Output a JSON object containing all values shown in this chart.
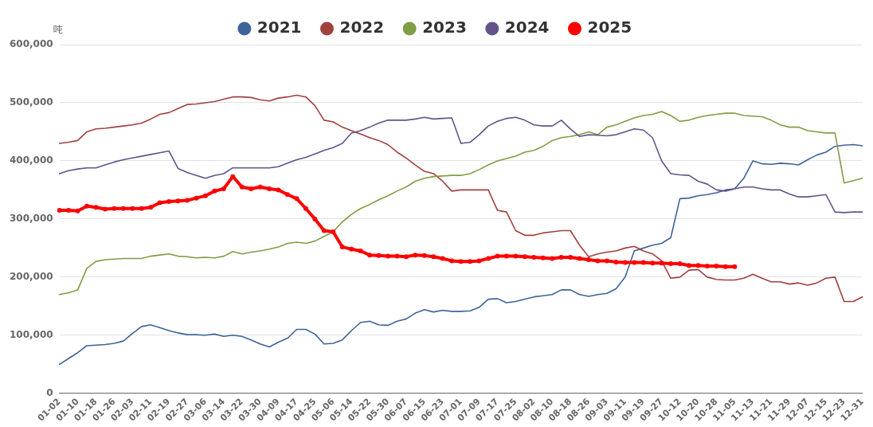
{
  "chart_data": {
    "type": "line",
    "ylabel": "吨",
    "categories": [
      "01-02",
      null,
      "01-10",
      null,
      "01-18",
      null,
      "01-26",
      null,
      "02-03",
      null,
      "02-11",
      null,
      "02-19",
      null,
      "02-27",
      null,
      "03-06",
      null,
      "03-14",
      null,
      "03-22",
      null,
      "03-30",
      null,
      "04-09",
      null,
      "04-17",
      null,
      "04-25",
      null,
      "05-06",
      null,
      "05-14",
      null,
      "05-22",
      null,
      "05-30",
      null,
      "06-07",
      null,
      "06-15",
      null,
      "06-23",
      null,
      "07-01",
      null,
      "07-09",
      null,
      "07-17",
      null,
      "07-25",
      null,
      "08-02",
      null,
      "08-10",
      null,
      "08-18",
      null,
      "08-26",
      null,
      "09-03",
      null,
      "09-11",
      null,
      "09-19",
      null,
      "09-27",
      null,
      "10-12",
      null,
      "10-20",
      null,
      "10-28",
      null,
      "11-05",
      null,
      "11-13",
      null,
      "11-21",
      null,
      "11-29",
      null,
      "12-07",
      null,
      "12-15",
      null,
      "12-23",
      null,
      "12-31"
    ],
    "series": [
      {
        "name": "2021",
        "color": "#3d6499",
        "values": [
          50000,
          60000,
          70000,
          82000,
          83000,
          84000,
          86000,
          90000,
          103000,
          115000,
          118000,
          113000,
          108000,
          104000,
          101000,
          101000,
          100000,
          102000,
          98000,
          100000,
          98000,
          92000,
          85000,
          80000,
          88000,
          95000,
          110000,
          110000,
          102000,
          85000,
          86000,
          92000,
          108000,
          122000,
          124000,
          118000,
          117000,
          124000,
          128000,
          138000,
          144000,
          140000,
          143000,
          141000,
          141000,
          142000,
          148000,
          162000,
          163000,
          156000,
          158000,
          162000,
          166000,
          168000,
          170000,
          178000,
          178000,
          170000,
          167000,
          170000,
          172000,
          180000,
          200000,
          245000,
          250000,
          255000,
          258000,
          268000,
          335000,
          336000,
          340000,
          342000,
          345000,
          350000,
          352000,
          370000,
          400000,
          395000,
          394000,
          396000,
          395000,
          393000,
          402000,
          410000,
          415000,
          425000,
          427000,
          428000,
          426000
        ]
      },
      {
        "name": "2022",
        "color": "#a0413e",
        "values": [
          430000,
          432000,
          435000,
          450000,
          455000,
          456000,
          458000,
          460000,
          462000,
          465000,
          472000,
          480000,
          483000,
          490000,
          497000,
          498000,
          500000,
          502000,
          506000,
          510000,
          510000,
          509000,
          505000,
          503000,
          508000,
          510000,
          513000,
          510000,
          495000,
          470000,
          467000,
          458000,
          452000,
          446000,
          440000,
          435000,
          428000,
          415000,
          405000,
          393000,
          382000,
          378000,
          365000,
          348000,
          350000,
          350000,
          350000,
          350000,
          315000,
          312000,
          280000,
          272000,
          272000,
          276000,
          278000,
          280000,
          280000,
          255000,
          235000,
          240000,
          243000,
          245000,
          250000,
          253000,
          245000,
          240000,
          228000,
          198000,
          200000,
          212000,
          213000,
          200000,
          196000,
          195000,
          195000,
          198000,
          205000,
          198000,
          192000,
          192000,
          188000,
          190000,
          186000,
          190000,
          198000,
          200000,
          158000,
          158000,
          166000
        ]
      },
      {
        "name": "2023",
        "color": "#7f9d43",
        "values": [
          170000,
          173000,
          178000,
          215000,
          227000,
          230000,
          231000,
          232000,
          232000,
          232000,
          236000,
          238000,
          240000,
          236000,
          235000,
          233000,
          234000,
          233000,
          236000,
          244000,
          240000,
          243000,
          245000,
          248000,
          252000,
          258000,
          260000,
          258000,
          262000,
          270000,
          278000,
          295000,
          308000,
          318000,
          325000,
          333000,
          340000,
          348000,
          355000,
          365000,
          370000,
          373000,
          374000,
          375000,
          375000,
          378000,
          385000,
          393000,
          400000,
          404000,
          408000,
          415000,
          418000,
          425000,
          435000,
          440000,
          442000,
          445000,
          450000,
          445000,
          458000,
          462000,
          468000,
          474000,
          478000,
          480000,
          485000,
          478000,
          468000,
          470000,
          475000,
          478000,
          480000,
          482000,
          482000,
          478000,
          477000,
          476000,
          470000,
          462000,
          458000,
          458000,
          452000,
          450000,
          448000,
          448000,
          362000,
          366000,
          370000
        ]
      },
      {
        "name": "2024",
        "color": "#64538a",
        "values": [
          378000,
          383000,
          386000,
          388000,
          388000,
          393000,
          398000,
          402000,
          405000,
          408000,
          411000,
          414000,
          417000,
          387000,
          380000,
          375000,
          370000,
          375000,
          378000,
          388000,
          388000,
          388000,
          388000,
          388000,
          390000,
          396000,
          402000,
          406000,
          412000,
          418000,
          423000,
          430000,
          448000,
          452000,
          458000,
          465000,
          470000,
          470000,
          470000,
          472000,
          475000,
          472000,
          473000,
          474000,
          430000,
          432000,
          445000,
          460000,
          468000,
          473000,
          475000,
          470000,
          462000,
          460000,
          460000,
          470000,
          455000,
          442000,
          445000,
          444000,
          443000,
          445000,
          450000,
          455000,
          453000,
          440000,
          400000,
          378000,
          376000,
          375000,
          365000,
          360000,
          350000,
          348000,
          352000,
          355000,
          355000,
          352000,
          350000,
          350000,
          343000,
          338000,
          338000,
          340000,
          342000,
          312000,
          311000,
          312000,
          312000
        ]
      },
      {
        "name": "2025",
        "color": "#ff0000",
        "marker": "circle",
        "values": [
          315000,
          315000,
          314000,
          322000,
          320000,
          317000,
          318000,
          318000,
          318000,
          318000,
          320000,
          328000,
          330000,
          331000,
          332000,
          336000,
          340000,
          348000,
          352000,
          373000,
          355000,
          352000,
          355000,
          352000,
          350000,
          342000,
          335000,
          318000,
          300000,
          280000,
          278000,
          252000,
          248000,
          245000,
          238000,
          237000,
          236000,
          236000,
          235000,
          238000,
          237000,
          235000,
          232000,
          228000,
          227000,
          227000,
          228000,
          232000,
          236000,
          236000,
          236000,
          235000,
          234000,
          233000,
          232000,
          234000,
          234000,
          232000,
          230000,
          228000,
          228000,
          226000,
          225000,
          225000,
          225000,
          224000,
          224000,
          223000,
          223000,
          220000,
          220000,
          219000,
          219000,
          218000,
          218000,
          null,
          null,
          null,
          null,
          null,
          null,
          null,
          null,
          null,
          null,
          null,
          null,
          null,
          null
        ]
      }
    ],
    "ylim": [
      0,
      600000
    ],
    "yticks": [
      0,
      {
        "value": 100000,
        "label": "100,000"
      },
      {
        "value": 200000,
        "label": "200,000"
      },
      {
        "value": 300000,
        "label": "300,000"
      },
      {
        "value": 400000,
        "label": "400,000"
      },
      {
        "value": 500000,
        "label": "500,000"
      },
      {
        "value": 600000,
        "label": "600,000"
      }
    ],
    "grid": "y",
    "legend": "top",
    "marker": "none",
    "line_style": "solid"
  }
}
